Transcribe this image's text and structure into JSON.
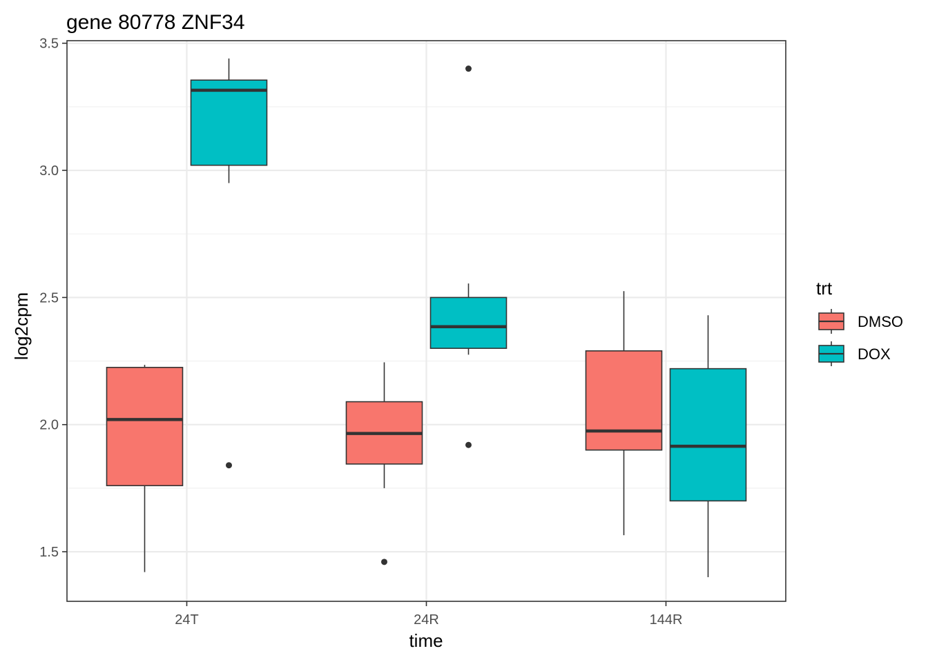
{
  "chart_data": {
    "type": "boxplot",
    "title": "gene 80778 ZNF34",
    "xlabel": "time",
    "ylabel": "log2cpm",
    "categories": [
      "24T",
      "24R",
      "144R"
    ],
    "ylim": [
      1.305,
      3.51
    ],
    "yticks": [
      1.5,
      2.0,
      2.5,
      3.0,
      3.5
    ],
    "ytick_labels": [
      "1.5",
      "2.0",
      "2.5",
      "3.0",
      "3.5"
    ],
    "grid": true,
    "legend": {
      "title": "trt",
      "position": "right"
    },
    "series": [
      {
        "name": "DMSO",
        "color": "#F8766D",
        "boxes": [
          {
            "category": "24T",
            "whisker_low": 1.42,
            "q1": 1.76,
            "median": 2.02,
            "q3": 2.225,
            "whisker_high": 2.235,
            "outliers": []
          },
          {
            "category": "24R",
            "whisker_low": 1.75,
            "q1": 1.845,
            "median": 1.965,
            "q3": 2.09,
            "whisker_high": 2.245,
            "outliers": [
              1.46
            ]
          },
          {
            "category": "144R",
            "whisker_low": 1.565,
            "q1": 1.9,
            "median": 1.975,
            "q3": 2.29,
            "whisker_high": 2.525,
            "outliers": []
          }
        ]
      },
      {
        "name": "DOX",
        "color": "#00BFC4",
        "boxes": [
          {
            "category": "24T",
            "whisker_low": 2.95,
            "q1": 3.02,
            "median": 3.315,
            "q3": 3.355,
            "whisker_high": 3.44,
            "outliers": [
              1.84
            ]
          },
          {
            "category": "24R",
            "whisker_low": 2.275,
            "q1": 2.3,
            "median": 2.385,
            "q3": 2.5,
            "whisker_high": 2.555,
            "outliers": [
              3.4,
              1.92
            ]
          },
          {
            "category": "144R",
            "whisker_low": 1.4,
            "q1": 1.7,
            "median": 1.915,
            "q3": 2.22,
            "whisker_high": 2.43,
            "outliers": []
          }
        ]
      }
    ]
  }
}
